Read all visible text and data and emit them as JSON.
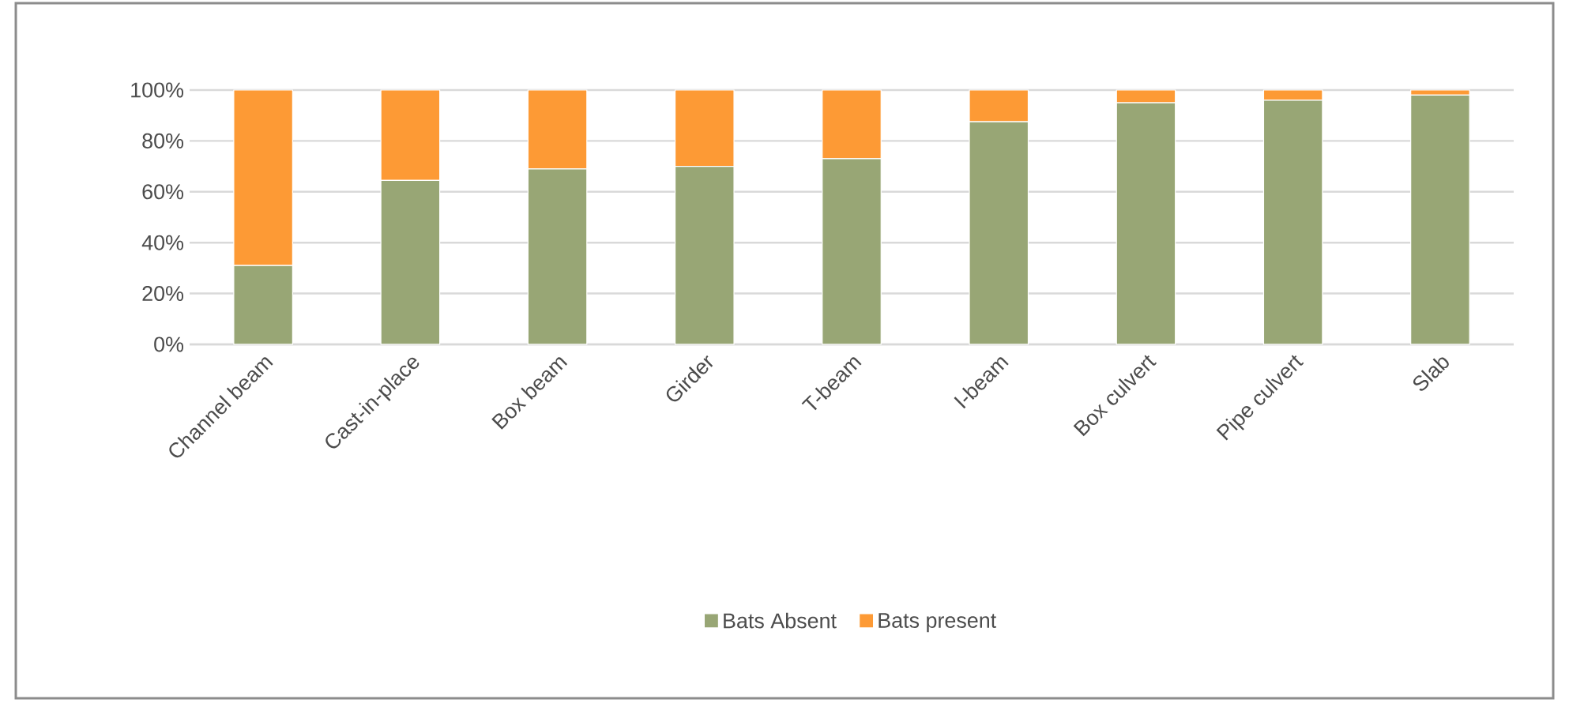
{
  "chart_data": {
    "type": "bar",
    "stacked": true,
    "categories": [
      "Channel beam",
      "Cast-in-place",
      "Box beam",
      "Girder",
      "T-beam",
      "I-beam",
      "Box culvert",
      "Pipe culvert",
      "Slab"
    ],
    "series": [
      {
        "name": "Bats Absent",
        "color": "#98a675",
        "values": [
          31,
          64.5,
          69,
          70,
          73,
          87.5,
          95,
          96,
          98
        ]
      },
      {
        "name": "Bats present",
        "color": "#fd9a35",
        "values": [
          69,
          35.5,
          31,
          30,
          27,
          12.5,
          5,
          4,
          2
        ]
      }
    ],
    "ylim": [
      0,
      100
    ],
    "yticks": [
      {
        "value": 0,
        "label": "0%"
      },
      {
        "value": 20,
        "label": "20%"
      },
      {
        "value": 40,
        "label": "40%"
      },
      {
        "value": 60,
        "label": "60%"
      },
      {
        "value": 80,
        "label": "80%"
      },
      {
        "value": 100,
        "label": "100%"
      }
    ],
    "grid": "y",
    "legend": "bottom"
  }
}
